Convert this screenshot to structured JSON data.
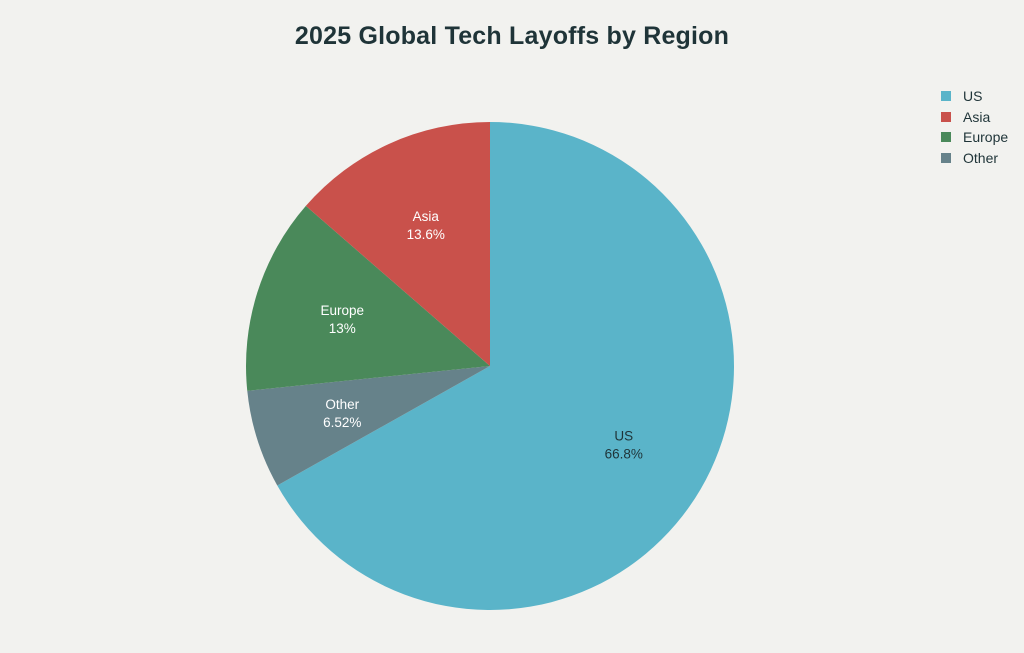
{
  "chart_data": {
    "type": "pie",
    "title": "2025 Global Tech Layoffs by Region",
    "slices": [
      {
        "label": "US",
        "value": 66.8,
        "display": "66.8%",
        "color": "#5ab4c9",
        "label_color": "#1f3438"
      },
      {
        "label": "Other",
        "value": 6.52,
        "display": "6.52%",
        "color": "#66828a",
        "label_color": "#ffffff"
      },
      {
        "label": "Europe",
        "value": 13,
        "display": "13%",
        "color": "#4a895a",
        "label_color": "#ffffff"
      },
      {
        "label": "Asia",
        "value": 13.6,
        "display": "13.6%",
        "color": "#c9514b",
        "label_color": "#ffffff"
      }
    ],
    "legend": {
      "position": "top-right",
      "items": [
        {
          "label": "US",
          "color": "#5ab4c9"
        },
        {
          "label": "Asia",
          "color": "#c9514b"
        },
        {
          "label": "Europe",
          "color": "#4a895a"
        },
        {
          "label": "Other",
          "color": "#66828a"
        }
      ]
    },
    "start_angle": "12 o'clock",
    "direction": "clockwise"
  }
}
